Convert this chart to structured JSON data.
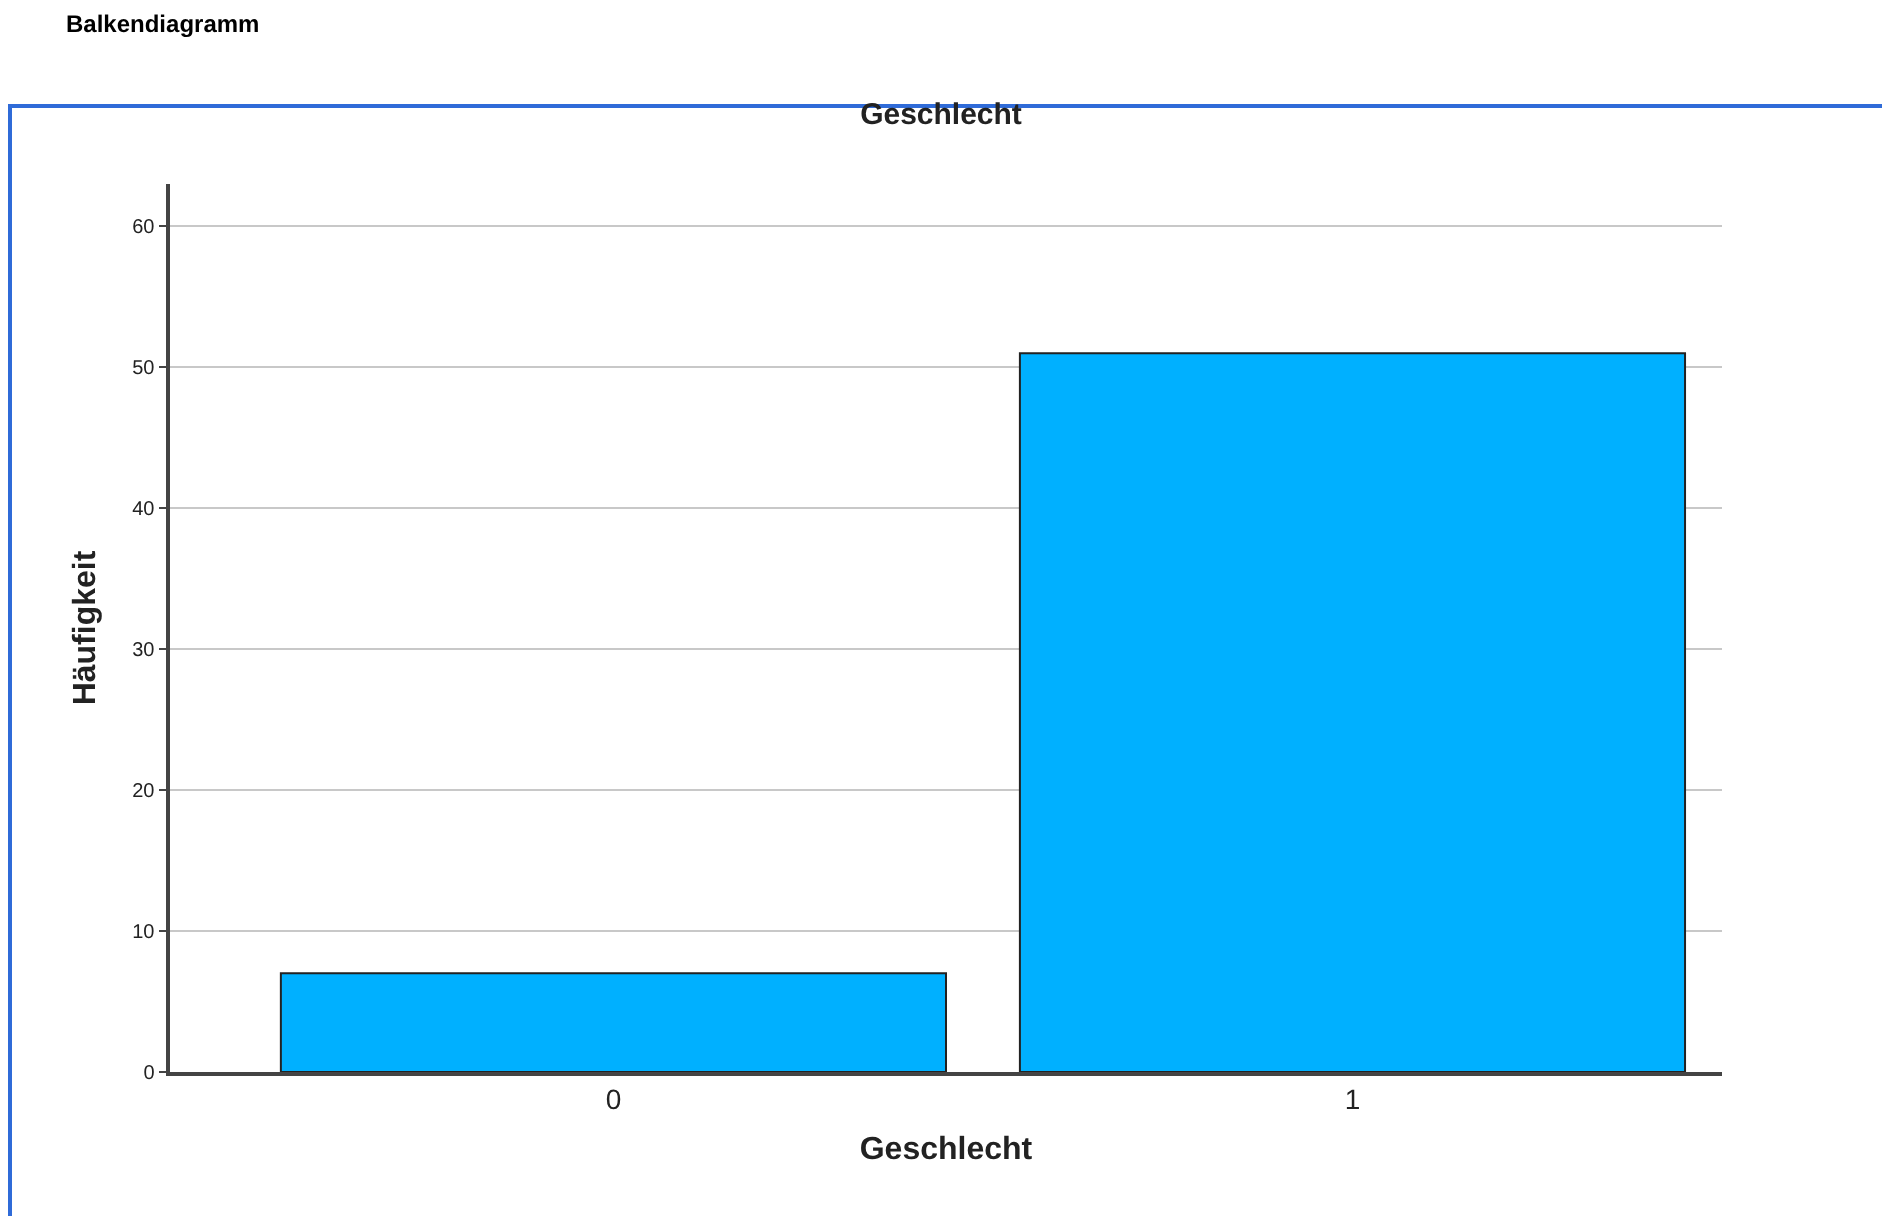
{
  "chart_data": {
    "type": "bar",
    "title": "Geschlecht",
    "xlabel": "Geschlecht",
    "ylabel": "Häufigkeit",
    "annotations": [
      "Balkendiagramm"
    ],
    "categories": [
      "0",
      "1"
    ],
    "values": [
      7,
      51
    ],
    "color": "#00b0ff",
    "ylim": [
      0,
      63
    ],
    "yticks": [
      0,
      10,
      20,
      30,
      40,
      50,
      60
    ],
    "grid": "y"
  }
}
